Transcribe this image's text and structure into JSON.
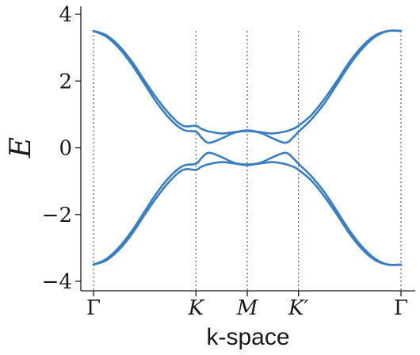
{
  "chart_data": {
    "type": "line",
    "xlabel": "k-space",
    "ylabel": "E",
    "ylim": [
      -4.3,
      4.3
    ],
    "yticks": [
      -4,
      -2,
      0,
      2,
      4
    ],
    "ytick_labels": [
      "−4",
      "−2",
      "0",
      "2",
      "4"
    ],
    "xticks": [
      0,
      2.0,
      3.0,
      4.0,
      6.0
    ],
    "xtick_labels": [
      "Γ",
      "K",
      "M",
      "K′",
      "Γ"
    ],
    "vlines": [
      0,
      2.0,
      3.0,
      4.0,
      6.0
    ],
    "xlim": [
      -0.25,
      6.25
    ],
    "color": "#3a7ebf",
    "grid": false,
    "series": [
      {
        "x": [
          0,
          0.25,
          0.5,
          0.75,
          1.0,
          1.25,
          1.5,
          1.75,
          2.0,
          2.1,
          2.25,
          2.5,
          2.75,
          3.0,
          3.25,
          3.5,
          3.75,
          3.9,
          4.0,
          4.25,
          4.5,
          4.75,
          5.0,
          5.25,
          5.5,
          5.75,
          6.0
        ],
        "values": [
          3.5,
          3.37,
          3.05,
          2.58,
          2.0,
          1.45,
          0.98,
          0.66,
          0.66,
          0.57,
          0.49,
          0.43,
          0.47,
          0.52,
          0.47,
          0.43,
          0.49,
          0.57,
          0.66,
          0.98,
          1.45,
          2.0,
          2.58,
          3.05,
          3.37,
          3.5,
          3.5
        ]
      },
      {
        "x": [
          0,
          0.25,
          0.5,
          0.75,
          1.0,
          1.25,
          1.5,
          1.75,
          2.0,
          2.1,
          2.25,
          2.5,
          2.75,
          3.0,
          3.25,
          3.5,
          3.75,
          3.9,
          4.0,
          4.25,
          4.5,
          4.75,
          5.0,
          5.25,
          5.5,
          5.75,
          6.0
        ],
        "values": [
          3.5,
          3.33,
          2.98,
          2.49,
          1.9,
          1.32,
          0.85,
          0.54,
          0.48,
          0.32,
          0.15,
          0.28,
          0.45,
          0.5,
          0.45,
          0.28,
          0.15,
          0.32,
          0.48,
          0.85,
          1.32,
          1.9,
          2.49,
          2.98,
          3.33,
          3.5,
          3.5
        ]
      },
      {
        "x": [
          0,
          0.25,
          0.5,
          0.75,
          1.0,
          1.25,
          1.5,
          1.75,
          2.0,
          2.1,
          2.25,
          2.5,
          2.75,
          3.0,
          3.25,
          3.5,
          3.75,
          3.9,
          4.0,
          4.25,
          4.5,
          4.75,
          5.0,
          5.25,
          5.5,
          5.75,
          6.0
        ],
        "values": [
          -3.5,
          -3.33,
          -2.98,
          -2.49,
          -1.9,
          -1.32,
          -0.85,
          -0.54,
          -0.48,
          -0.32,
          -0.15,
          -0.28,
          -0.45,
          -0.5,
          -0.45,
          -0.28,
          -0.15,
          -0.32,
          -0.48,
          -0.85,
          -1.32,
          -1.9,
          -2.49,
          -2.98,
          -3.33,
          -3.5,
          -3.5
        ]
      },
      {
        "x": [
          0,
          0.25,
          0.5,
          0.75,
          1.0,
          1.25,
          1.5,
          1.75,
          2.0,
          2.1,
          2.25,
          2.5,
          2.75,
          3.0,
          3.25,
          3.5,
          3.75,
          3.9,
          4.0,
          4.25,
          4.5,
          4.75,
          5.0,
          5.25,
          5.5,
          5.75,
          6.0
        ],
        "values": [
          -3.5,
          -3.37,
          -3.05,
          -2.58,
          -2.0,
          -1.45,
          -0.98,
          -0.66,
          -0.66,
          -0.57,
          -0.49,
          -0.43,
          -0.47,
          -0.52,
          -0.47,
          -0.43,
          -0.49,
          -0.57,
          -0.66,
          -0.98,
          -1.45,
          -2.0,
          -2.58,
          -3.05,
          -3.37,
          -3.5,
          -3.5
        ]
      }
    ]
  }
}
